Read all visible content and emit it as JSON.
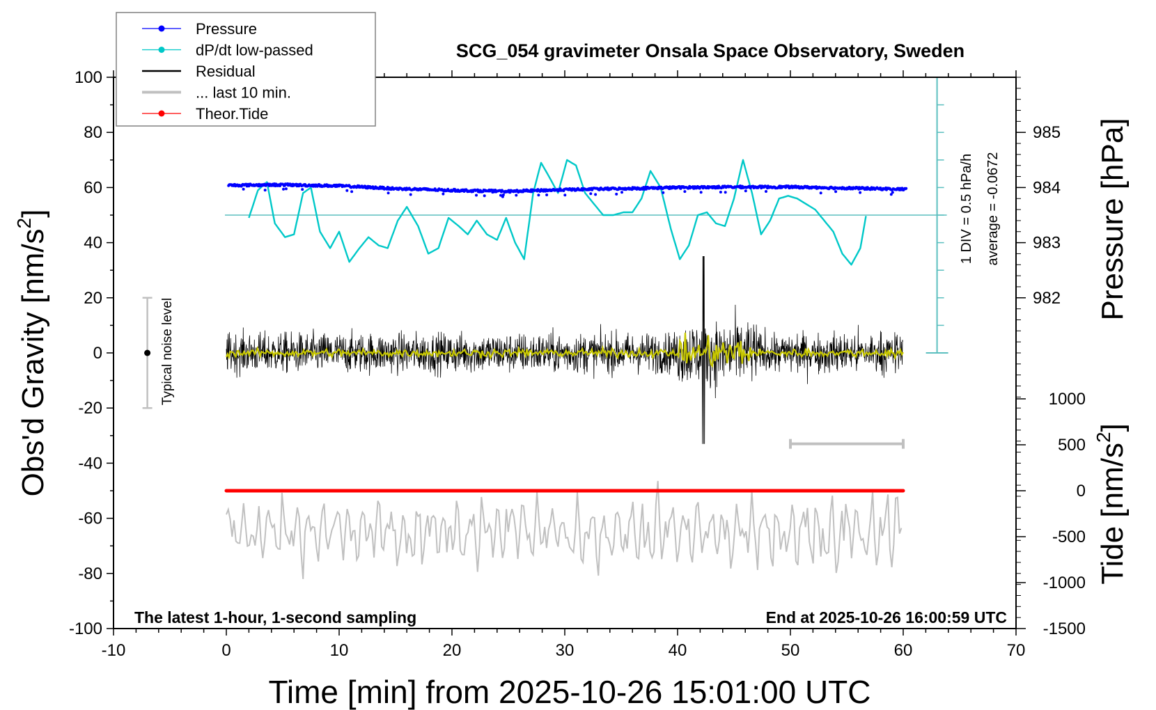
{
  "chart_data": {
    "type": "line",
    "title": "SCG_054 gravimeter Onsala Space Observatory, Sweden",
    "xlabel": "Time [min] from 2025-10-26 15:01:00 UTC",
    "ylabel": "Obs'd Gravity [nm/s",
    "ylabel_sup": "2",
    "ylabel_end": "]",
    "xlim": [
      -10,
      70
    ],
    "ylim": [
      -100,
      100
    ],
    "x_ticks": [
      -10,
      0,
      10,
      20,
      30,
      40,
      50,
      60,
      70
    ],
    "x_tick_labels": [
      "-10",
      "0",
      "10",
      "20",
      "30",
      "40",
      "50",
      "60",
      "70"
    ],
    "y_ticks": [
      100,
      80,
      60,
      40,
      20,
      0,
      -20,
      -40,
      -60,
      -80,
      -100
    ],
    "y_tick_labels": [
      "100",
      "80",
      "60",
      "40",
      "20",
      "0",
      "-20",
      "-40",
      "-60",
      "-80",
      "-100"
    ],
    "grid": false,
    "pressure_axis": {
      "label": "Pressure [hPa]",
      "ticks": [
        985,
        984,
        983,
        982
      ],
      "tick_labels": [
        "985",
        "984",
        "983",
        "982"
      ],
      "gravity_at_984": 60,
      "gravity_per_hPa": 20
    },
    "tide_axis": {
      "label": "Tide [nm/s",
      "label_sup": "2",
      "label_end": "]",
      "ticks": [
        1000,
        500,
        0,
        -500,
        -1000,
        -1500
      ],
      "tick_labels": [
        "1000",
        "500",
        "0",
        "-500",
        "-1000",
        "-1500"
      ],
      "gravity_at_zero": -50,
      "gravity_per_unit": 0.0333
    },
    "dpdt_axis": {
      "time_position": 63,
      "baseline_gravity": 50,
      "top_gravity": 100,
      "bottom_gravity": 0,
      "div_gravity": 10,
      "div_label": "1 DIV = 0.5 hPa/h",
      "average_label": "average = -0.0672"
    },
    "legend": {
      "position": "top-left",
      "entries": [
        {
          "label": "Pressure",
          "color": "#0000ff",
          "marker": true
        },
        {
          "label": "dP/dt low-passed",
          "color": "#00c8c8",
          "marker": true
        },
        {
          "label": "Residual",
          "color": "#000000",
          "marker": false
        },
        {
          "label": "... last 10 min.",
          "color": "#c0c0c0",
          "marker": false
        },
        {
          "label": "Theor.Tide",
          "color": "#ff0000",
          "marker": true
        }
      ]
    },
    "annotations": {
      "bottom_left": "The latest 1-hour, 1-second sampling",
      "bottom_right": "End at 2025-10-26 16:00:59 UTC",
      "noise_label": "Typical noise level",
      "noise_center": 0,
      "noise_half_range": 20,
      "noise_time": -7,
      "last10_range": [
        50,
        60
      ],
      "last10_gravity": -33
    },
    "series": [
      {
        "name": "Pressure",
        "color": "#0000ff",
        "unit": "hPa",
        "x": [
          0,
          5,
          10,
          15,
          20,
          25,
          30,
          35,
          40,
          45,
          50,
          55,
          60
        ],
        "values": [
          984.04,
          984.05,
          984.03,
          983.98,
          983.95,
          983.93,
          983.96,
          983.98,
          984.0,
          984.01,
          984.01,
          983.99,
          983.97
        ]
      },
      {
        "name": "dP/dt low-passed",
        "color": "#00c8c8",
        "unit": "gravity-scale",
        "x": [
          2,
          2.8,
          3.6,
          4.3,
          5.2,
          6.0,
          6.8,
          7.5,
          8.3,
          9.2,
          10.0,
          10.9,
          11.8,
          12.6,
          13.5,
          14.3,
          15.2,
          16.0,
          17.0,
          17.9,
          18.8,
          19.7,
          20.6,
          21.4,
          22.2,
          23.1,
          24.0,
          24.8,
          25.6,
          26.4,
          27.2,
          27.9,
          28.6,
          29.4,
          30.2,
          31.0,
          31.8,
          32.6,
          33.4,
          34.3,
          35.2,
          36.0,
          36.8,
          37.6,
          38.5,
          39.4,
          40.2,
          41.0,
          41.8,
          42.6,
          43.4,
          44.2,
          45.0,
          45.8,
          46.6,
          47.4,
          48.2,
          49.0,
          49.8,
          50.6,
          51.4,
          52.2,
          53.0,
          53.8,
          54.6,
          55.4,
          56.2,
          56.8
        ],
        "values": [
          49,
          59,
          62,
          47,
          42,
          43,
          58,
          60,
          44,
          38,
          44,
          33,
          38,
          42,
          39,
          38,
          48,
          53,
          46,
          36,
          38,
          49,
          46,
          43,
          48,
          43,
          41,
          49,
          40,
          34,
          58,
          69,
          64,
          58,
          70,
          68,
          58,
          54,
          50,
          50,
          51,
          51,
          56,
          66,
          60,
          45,
          34,
          39,
          50,
          51,
          47,
          46,
          56,
          70,
          58,
          43,
          48,
          56,
          57,
          56,
          54,
          52,
          48,
          44,
          36,
          32,
          38,
          52
        ]
      },
      {
        "name": "Residual",
        "color": "#000000",
        "unit": "nm/s2",
        "x_range": [
          0,
          60
        ],
        "typical_amplitude": 12,
        "max": 35,
        "min": -33
      },
      {
        "name": "Residual smoothed",
        "color": "#c8c800",
        "unit": "nm/s2",
        "x_range": [
          0,
          60
        ],
        "typical_amplitude": 1.5
      },
      {
        "name": "... last 10 min.",
        "color": "#c0c0c0",
        "unit": "nm/s2",
        "x_range": [
          0,
          60
        ],
        "offset": -65,
        "typical_amplitude": 8,
        "max": -40,
        "min": -83
      },
      {
        "name": "Theor.Tide",
        "color": "#ff0000",
        "unit": "nm/s2",
        "x": [
          0,
          60
        ],
        "values": [
          0,
          0
        ]
      }
    ]
  }
}
